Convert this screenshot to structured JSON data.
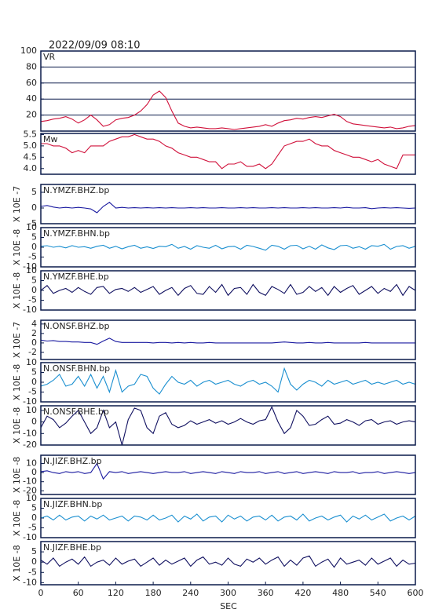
{
  "title": "2022/09/09 08:10",
  "x_label": "SEC",
  "xlim": [
    0,
    600
  ],
  "xticks": [
    0,
    60,
    120,
    180,
    240,
    300,
    360,
    420,
    480,
    540,
    600
  ],
  "x": [
    0,
    10,
    20,
    30,
    40,
    50,
    60,
    70,
    80,
    90,
    100,
    110,
    120,
    130,
    140,
    150,
    160,
    170,
    180,
    190,
    200,
    210,
    220,
    230,
    240,
    250,
    260,
    270,
    280,
    290,
    300,
    310,
    320,
    330,
    340,
    350,
    360,
    370,
    380,
    390,
    400,
    410,
    420,
    430,
    440,
    450,
    460,
    470,
    480,
    490,
    500,
    510,
    520,
    530,
    540,
    550,
    560,
    570,
    580,
    590,
    600
  ],
  "chart_data": [
    {
      "type": "line",
      "label": "VR",
      "color": "#d0103a",
      "grid": true,
      "ylim": [
        0,
        100
      ],
      "yticks": [
        20,
        40,
        60,
        80,
        100
      ],
      "values": [
        12,
        13,
        15,
        16,
        18,
        15,
        10,
        14,
        20,
        14,
        6,
        8,
        14,
        16,
        17,
        20,
        25,
        33,
        45,
        50,
        42,
        25,
        10,
        6,
        4,
        5,
        4,
        3,
        3,
        4,
        3,
        2,
        3,
        4,
        5,
        6,
        8,
        6,
        10,
        13,
        14,
        16,
        15,
        17,
        18,
        17,
        19,
        21,
        18,
        12,
        9,
        8,
        7,
        6,
        5,
        4,
        5,
        3,
        4,
        6,
        7
      ]
    },
    {
      "type": "line",
      "label": "Mw",
      "color": "#d0103a",
      "grid": false,
      "ylim": [
        3.75,
        5.55
      ],
      "yticks": [
        {
          "value": 4,
          "label": "4.0"
        },
        4.5,
        {
          "value": 5,
          "label": "5.0"
        },
        5.5
      ],
      "values": [
        5.1,
        5.1,
        5.0,
        5.0,
        4.9,
        4.7,
        4.8,
        4.7,
        5.0,
        5.0,
        5.0,
        5.2,
        5.3,
        5.4,
        5.4,
        5.5,
        5.4,
        5.3,
        5.3,
        5.2,
        5.0,
        4.9,
        4.7,
        4.6,
        4.5,
        4.5,
        4.4,
        4.3,
        4.3,
        4.0,
        4.2,
        4.2,
        4.3,
        4.1,
        4.1,
        4.2,
        4.0,
        4.2,
        4.6,
        5.0,
        5.1,
        5.2,
        5.2,
        5.3,
        5.1,
        5.0,
        5.0,
        4.8,
        4.7,
        4.6,
        4.5,
        4.5,
        4.4,
        4.3,
        4.4,
        4.2,
        4.1,
        4.0,
        4.6,
        4.6,
        4.6
      ]
    },
    {
      "type": "line",
      "label": "N.YMZF.BHZ.bp",
      "unit": "X 10E -7",
      "color": "#1a1aa0",
      "grid": false,
      "ylim": [
        -5,
        7.5
      ],
      "yticks": [
        -5,
        0,
        5
      ],
      "values": [
        0.5,
        0.8,
        0.3,
        0,
        0.2,
        0,
        0.2,
        0,
        -0.3,
        -1.5,
        0.5,
        1.8,
        0,
        0.2,
        0,
        0.1,
        0,
        0.1,
        0,
        0.1,
        0,
        0.1,
        0,
        0,
        0.1,
        0,
        0.1,
        0,
        0,
        0.1,
        0,
        0,
        0.1,
        0,
        0.1,
        0,
        0,
        0.1,
        0,
        0.1,
        0,
        0,
        0.1,
        0,
        0.1,
        0,
        0,
        0.1,
        0,
        0.2,
        0,
        0,
        0.1,
        -0.2,
        0,
        0.1,
        0,
        0.1,
        0,
        -0.1,
        0
      ]
    },
    {
      "type": "line",
      "label": "N.YMZF.BHN.bp",
      "unit": "X 10E -8",
      "color": "#1a8fd0",
      "grid": false,
      "ylim": [
        -10,
        10
      ],
      "yticks": [
        -10,
        -5,
        0,
        5,
        10
      ],
      "values": [
        0.5,
        0.8,
        0,
        0.5,
        -0.3,
        0.8,
        0,
        0.3,
        -0.5,
        0.5,
        1,
        -0.5,
        0.5,
        -0.8,
        0.3,
        1,
        -0.5,
        0.2,
        -0.6,
        0.5,
        0.3,
        1.5,
        -0.5,
        0.4,
        -1,
        0.8,
        0,
        -0.5,
        1,
        -0.8,
        0.3,
        0.5,
        -1,
        1,
        0.4,
        -0.5,
        -1.5,
        1,
        0.5,
        -1,
        0.8,
        1,
        -0.8,
        0.5,
        -1,
        1.2,
        -0.3,
        -1.2,
        0.8,
        1,
        -0.5,
        0.3,
        -1,
        0.8,
        0.5,
        1.5,
        -1,
        0.4,
        0.8,
        -0.5,
        0.5
      ]
    },
    {
      "type": "line",
      "label": "N.YMZF.BHE.bp",
      "unit": "X 10E -8",
      "color": "#101060",
      "grid": false,
      "ylim": [
        -10,
        10
      ],
      "yticks": [
        -10,
        -5,
        0,
        5,
        10
      ],
      "values": [
        0,
        2.5,
        -1.5,
        0,
        1,
        -1,
        1.5,
        -0.5,
        -2,
        1.5,
        2,
        -1.5,
        0.5,
        1,
        -0.5,
        1.5,
        -1,
        0.5,
        2,
        -2,
        0,
        1.5,
        -2.5,
        1,
        2.5,
        -1.5,
        -2,
        2,
        -1,
        3,
        -2.5,
        1,
        1.5,
        -2,
        3,
        -1,
        -2.5,
        2,
        0.5,
        -1.5,
        3,
        -2,
        -1,
        2,
        -0.5,
        1.5,
        -2.5,
        2,
        -1,
        1,
        2.5,
        -2,
        0,
        2,
        -1.5,
        1,
        -0.5,
        3,
        -2.5,
        2,
        0
      ]
    },
    {
      "type": "line",
      "label": "N.ONSF.BHZ.bp",
      "unit": "X 10E -7",
      "color": "#1a1aa0",
      "grid": false,
      "ylim": [
        -3.5,
        4.8
      ],
      "yticks": [
        -2,
        0,
        2,
        4
      ],
      "values": [
        0.6,
        0.4,
        0.5,
        0.3,
        0.3,
        0.2,
        0.2,
        0.1,
        0.1,
        -0.3,
        0.4,
        1,
        0.3,
        0.1,
        0.1,
        0.1,
        0.1,
        0.1,
        0,
        0.1,
        0.1,
        0,
        0.1,
        0,
        0.1,
        0,
        0,
        0.1,
        0,
        0,
        0,
        0,
        0,
        0,
        0,
        0,
        0,
        0,
        0.1,
        0.2,
        0.1,
        0,
        0,
        0.1,
        0,
        0,
        0.1,
        0,
        0,
        0,
        0,
        0,
        0.1,
        0,
        0,
        0,
        0,
        0,
        0,
        0,
        0
      ]
    },
    {
      "type": "line",
      "label": "N.ONSF.BHN.bp",
      "unit": "X 10E -8",
      "color": "#1a8fd0",
      "grid": false,
      "ylim": [
        -10,
        10
      ],
      "yticks": [
        -10,
        -5,
        0,
        5,
        10
      ],
      "values": [
        -2,
        -1,
        1,
        4,
        -2,
        -1,
        3,
        -2,
        4,
        -3,
        3,
        -5,
        6,
        -5,
        -2,
        -1,
        4,
        3,
        -3,
        -6,
        -1,
        3,
        0,
        -1,
        1,
        -2,
        0,
        1,
        -1,
        0,
        1,
        -1,
        -2,
        0,
        1,
        -1,
        0,
        -2,
        -5,
        7,
        -1,
        -4,
        -1,
        1,
        0,
        -2,
        1,
        -1,
        0,
        1,
        -1,
        0,
        1,
        -1,
        0,
        -1,
        0,
        1,
        -1,
        0,
        -1
      ]
    },
    {
      "type": "line",
      "label": "N.ONSF.BHE.bp",
      "unit": "X 10E -8",
      "color": "#101060",
      "grid": false,
      "ylim": [
        -20,
        14
      ],
      "yticks": [
        -20,
        -10,
        0,
        10
      ],
      "values": [
        -5,
        5,
        2,
        -5,
        -1,
        5,
        10,
        0,
        -10,
        -5,
        10,
        -5,
        0,
        -20,
        2,
        12,
        10,
        -5,
        -10,
        5,
        8,
        -2,
        -5,
        -3,
        1,
        -2,
        0,
        2,
        -1,
        1,
        -2,
        0,
        3,
        0,
        -2,
        1,
        2,
        13,
        0,
        -10,
        -5,
        10,
        5,
        -3,
        -2,
        2,
        5,
        -2,
        -1,
        2,
        0,
        -3,
        1,
        2,
        -2,
        0,
        1,
        -2,
        0,
        1,
        0
      ]
    },
    {
      "type": "line",
      "label": "N.JIZF.BHZ.bp",
      "unit": "X 10E -8",
      "color": "#1a1aa0",
      "grid": false,
      "ylim": [
        -24,
        19
      ],
      "yticks": [
        -20,
        -10,
        0,
        10
      ],
      "values": [
        1,
        2,
        0,
        -1,
        1,
        0,
        1,
        -1,
        0,
        10,
        -7,
        1,
        0,
        1,
        -1,
        0,
        1,
        0,
        -1,
        0,
        1,
        0,
        0,
        1,
        -1,
        0,
        1,
        0,
        -1,
        1,
        0,
        -1,
        1,
        0,
        0,
        1,
        -1,
        0,
        1,
        -1,
        0,
        1,
        -1,
        0,
        1,
        0,
        -1,
        1,
        0,
        0,
        1,
        -1,
        0,
        0,
        1,
        -1,
        0,
        1,
        0,
        -1,
        0
      ]
    },
    {
      "type": "line",
      "label": "N.JIZF.BHN.bp",
      "unit": "X 10E -8",
      "color": "#1a8fd0",
      "grid": false,
      "ylim": [
        -10,
        10
      ],
      "yticks": [
        -10,
        -5,
        0,
        5,
        10
      ],
      "values": [
        0,
        1,
        -1,
        1.5,
        -1,
        0.5,
        1,
        -1.5,
        1,
        -0.5,
        1.5,
        -1,
        0,
        1,
        -1.5,
        1,
        0.5,
        -1,
        1.5,
        -1,
        0,
        1.5,
        -2,
        1,
        -0.5,
        2,
        -1.5,
        0.5,
        1,
        -2,
        1.5,
        -0.5,
        1,
        -1.5,
        0.5,
        1,
        -1,
        1.5,
        -1.5,
        0.5,
        1,
        -1,
        2,
        -1.5,
        0,
        1,
        -1,
        0.5,
        1.5,
        -2,
        1,
        -0.5,
        1.5,
        -1,
        0.5,
        2,
        -1.5,
        0,
        1,
        -1,
        1
      ]
    },
    {
      "type": "line",
      "label": "N.JIZF.BHE.bp",
      "unit": "X 10E -8",
      "color": "#101060",
      "grid": false,
      "ylim": [
        -11,
        10
      ],
      "yticks": [
        -10,
        -5,
        0,
        5
      ],
      "values": [
        1,
        -1,
        2,
        -2,
        0,
        1.5,
        -1,
        2.5,
        -2,
        0,
        1,
        -1.5,
        2,
        -1,
        0.5,
        1.5,
        -2,
        0,
        2,
        -1.5,
        1,
        -1,
        0.5,
        2,
        -2,
        1,
        2.5,
        -1,
        0,
        -1.5,
        2,
        -1,
        -2,
        1.5,
        0,
        2,
        -1,
        1,
        2.5,
        -2,
        1,
        -1.5,
        2,
        3,
        -2,
        0,
        1.5,
        -2.5,
        2,
        -1,
        0,
        1,
        -1.5,
        2,
        -1,
        0.5,
        2,
        -2,
        1,
        -1,
        -0.5
      ]
    }
  ]
}
